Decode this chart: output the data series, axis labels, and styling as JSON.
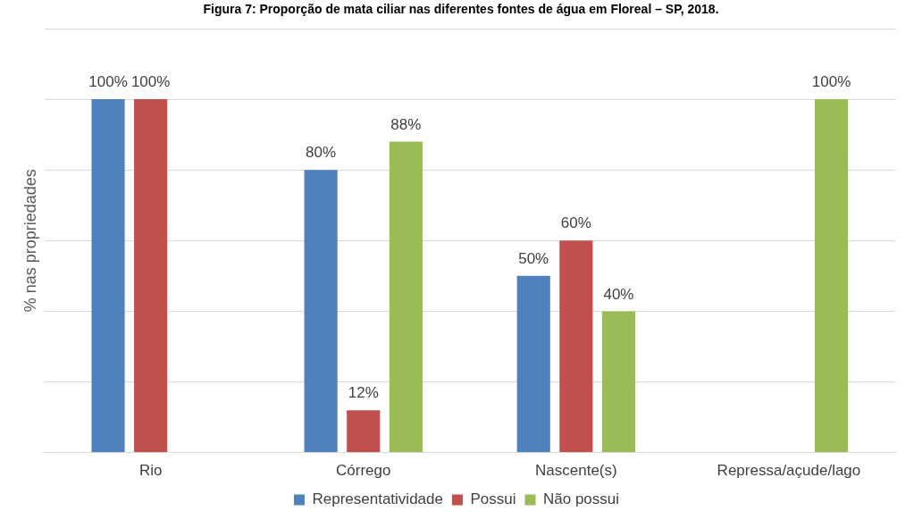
{
  "chart_data": {
    "type": "bar",
    "title": "Figura 7: Proporção de mata ciliar nas diferentes fontes de água em Floreal – SP, 2018.",
    "ylabel": "% nas propriedades",
    "categories": [
      "Rio",
      "Córrego",
      "Nascente(s)",
      "Repressa/açude/lago"
    ],
    "series": [
      {
        "name": "Representatividade",
        "color": "#4f81bd",
        "values": [
          100,
          80,
          50,
          null
        ],
        "value_labels": [
          "100%",
          "80%",
          "50%",
          null
        ]
      },
      {
        "name": "Possui",
        "color": "#c0504d",
        "values": [
          100,
          12,
          60,
          null
        ],
        "value_labels": [
          "100%",
          "12%",
          "60%",
          null
        ]
      },
      {
        "name": "Não possui",
        "color": "#9bbb59",
        "values": [
          null,
          88,
          40,
          100
        ],
        "value_labels": [
          null,
          "88%",
          "40%",
          "100%"
        ]
      }
    ],
    "tick_labels": "x",
    "grid": "y",
    "legend": "bottom"
  }
}
